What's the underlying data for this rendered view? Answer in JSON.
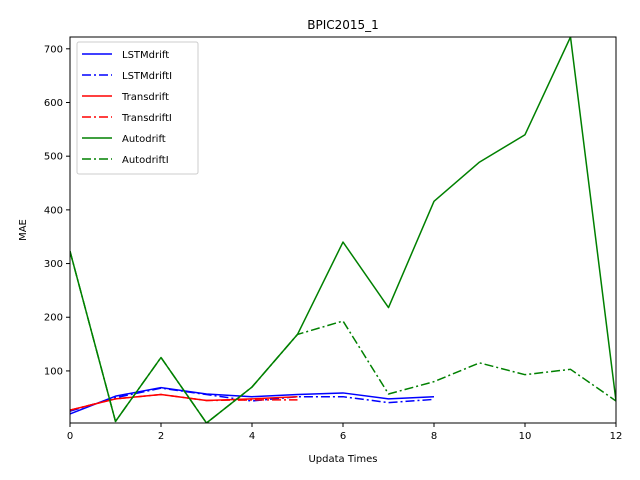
{
  "chart_data": {
    "type": "line",
    "title": "BPIC2015_1",
    "xlabel": "Updata Times",
    "ylabel": "MAE",
    "xlim": [
      0,
      12
    ],
    "ylim": [
      3,
      722
    ],
    "xticks": [
      0,
      2,
      4,
      6,
      8,
      10,
      12
    ],
    "yticks": [
      100,
      200,
      300,
      400,
      500,
      600,
      700
    ],
    "grid": false,
    "legend_position": "top-left",
    "series": [
      {
        "name": "LSTMdrift",
        "color": "#0000ff",
        "dash": "solid",
        "x": [
          0,
          1,
          2,
          3,
          4,
          5,
          6,
          7,
          8
        ],
        "y": [
          20,
          53,
          69,
          57,
          52,
          56,
          59,
          48,
          52
        ]
      },
      {
        "name": "LSTMdriftI",
        "color": "#0000ff",
        "dash": "dashdot",
        "x": [
          0,
          1,
          2,
          3,
          4,
          5,
          6,
          7,
          8
        ],
        "y": [
          25,
          50,
          68,
          56,
          44,
          52,
          52,
          41,
          47
        ]
      },
      {
        "name": "Transdrift",
        "color": "#ff0000",
        "dash": "solid",
        "x": [
          0,
          1,
          2,
          3,
          4,
          5
        ],
        "y": [
          27,
          48,
          56,
          45,
          48,
          52
        ]
      },
      {
        "name": "TransdriftI",
        "color": "#ff0000",
        "dash": "dashdot",
        "x": [
          0,
          1,
          2,
          3,
          4,
          5
        ],
        "y": [
          27,
          48,
          56,
          45,
          46,
          46
        ]
      },
      {
        "name": "Autodrift",
        "color": "#008000",
        "dash": "solid",
        "x": [
          0,
          1,
          2,
          3,
          4,
          5,
          6,
          7,
          8,
          9,
          10,
          11,
          12
        ],
        "y": [
          323,
          6,
          125,
          3,
          70,
          168,
          340,
          218,
          416,
          489,
          540,
          722,
          44
        ]
      },
      {
        "name": "AutodriftI",
        "color": "#008000",
        "dash": "dashdot",
        "x": [
          0,
          1,
          2,
          3,
          4,
          5,
          6,
          7,
          8,
          9,
          10,
          11,
          12
        ],
        "y": [
          323,
          6,
          125,
          3,
          70,
          168,
          193,
          57,
          80,
          115,
          93,
          103,
          44
        ]
      }
    ]
  }
}
